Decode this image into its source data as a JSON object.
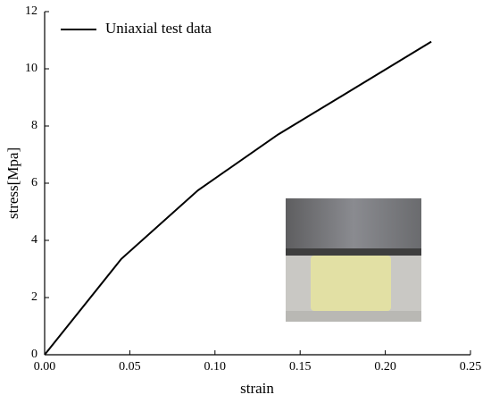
{
  "chart_data": {
    "type": "line",
    "x_label": "strain",
    "y_label": "stress[Mpa]",
    "x": [
      0,
      0.045,
      0.09,
      0.137,
      0.18,
      0.227
    ],
    "series": [
      {
        "name": "Uniaxial test data",
        "color": "#000000",
        "values": [
          0,
          3.35,
          5.75,
          7.7,
          9.25,
          10.95
        ]
      }
    ],
    "xlim": [
      0,
      0.25
    ],
    "xticks": [
      {
        "value": 0,
        "label": "0.00"
      },
      {
        "value": 0.05,
        "label": "0.05"
      },
      {
        "value": 0.1,
        "label": "0.10"
      },
      {
        "value": 0.15,
        "label": "0.15"
      },
      {
        "value": 0.2,
        "label": "0.20"
      },
      {
        "value": 0.25,
        "label": "0.25"
      }
    ],
    "ylim": [
      0,
      12
    ],
    "yticks": [
      0,
      2,
      4,
      6,
      8,
      10,
      12
    ],
    "legend": "upper-left"
  }
}
